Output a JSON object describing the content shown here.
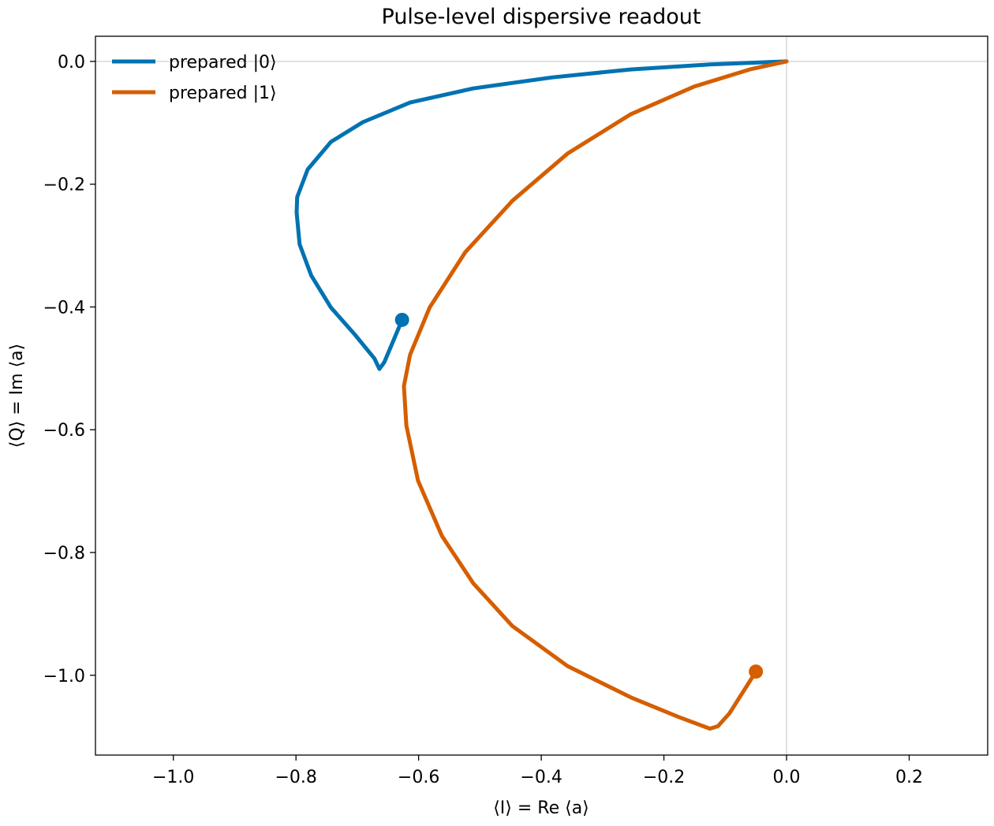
{
  "chart_data": {
    "type": "line",
    "title": "Pulse-level dispersive readout",
    "x_label": "⟨I⟩ = Re ⟨a⟩",
    "y_label": "⟨Q⟩ = Im ⟨a⟩",
    "xlim": [
      -1.127,
      0.328
    ],
    "ylim": [
      -1.13,
      0.041
    ],
    "xticks": [
      {
        "value": -1.0,
        "label": "−1.0"
      },
      {
        "value": -0.8,
        "label": "−0.8"
      },
      {
        "value": -0.6,
        "label": "−0.6"
      },
      {
        "value": -0.4,
        "label": "−0.4"
      },
      {
        "value": -0.2,
        "label": "−0.2"
      },
      {
        "value": 0.0,
        "label": "0.0"
      },
      0.2
    ],
    "yticks": [
      {
        "value": 0.0,
        "label": "0.0"
      },
      {
        "value": -0.2,
        "label": "−0.2"
      },
      {
        "value": -0.4,
        "label": "−0.4"
      },
      {
        "value": -0.6,
        "label": "−0.6"
      },
      {
        "value": -0.8,
        "label": "−0.8"
      },
      {
        "value": -1.0,
        "label": "−1.0"
      }
    ],
    "zero_lines": true,
    "zero_line_color": "#d3d3d3",
    "end_markers": true,
    "legend": "upper left",
    "series": [
      {
        "name": "prepared |0⟩",
        "color": "#0072b2",
        "x": [
          0,
          -0.125,
          -0.254,
          -0.382,
          -0.511,
          -0.614,
          -0.691,
          -0.743,
          -0.781,
          -0.798,
          -0.799,
          -0.794,
          -0.775,
          -0.743,
          -0.704,
          -0.672,
          -0.664,
          -0.656,
          -0.64,
          -0.627
        ],
        "values": [
          0,
          -0.005,
          -0.013,
          -0.026,
          -0.044,
          -0.067,
          -0.099,
          -0.131,
          -0.176,
          -0.221,
          -0.246,
          -0.298,
          -0.349,
          -0.401,
          -0.445,
          -0.484,
          -0.501,
          -0.49,
          -0.452,
          -0.421
        ]
      },
      {
        "name": "prepared |1⟩",
        "color": "#d55e00",
        "x": [
          0,
          -0.06,
          -0.151,
          -0.254,
          -0.357,
          -0.447,
          -0.524,
          -0.582,
          -0.614,
          -0.624,
          -0.62,
          -0.601,
          -0.562,
          -0.511,
          -0.447,
          -0.357,
          -0.254,
          -0.176,
          -0.125,
          -0.112,
          -0.093,
          -0.05
        ],
        "values": [
          0,
          -0.013,
          -0.041,
          -0.086,
          -0.15,
          -0.227,
          -0.311,
          -0.401,
          -0.478,
          -0.529,
          -0.593,
          -0.683,
          -0.773,
          -0.85,
          -0.92,
          -0.985,
          -1.036,
          -1.068,
          -1.087,
          -1.083,
          -1.062,
          -0.994
        ]
      }
    ]
  }
}
